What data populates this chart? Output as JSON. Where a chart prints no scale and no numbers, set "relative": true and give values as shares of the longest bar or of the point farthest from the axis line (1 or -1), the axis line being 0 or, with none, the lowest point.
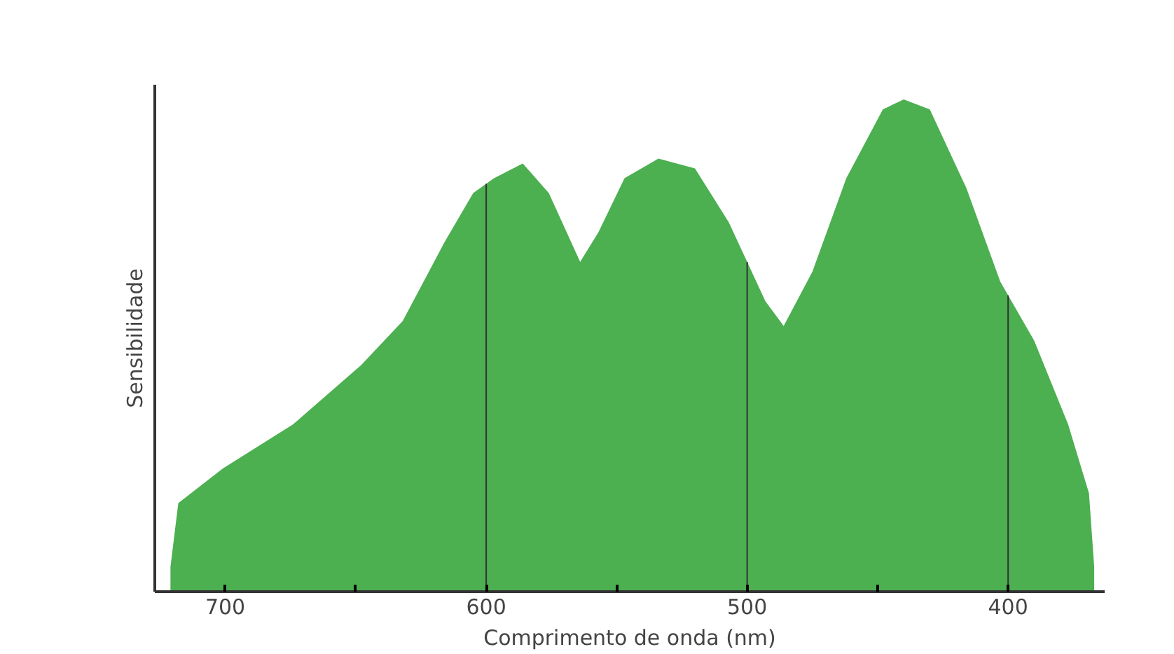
{
  "chart_data": {
    "type": "area",
    "relative": true,
    "xlabel": "Comprimento de onda (nm)",
    "ylabel": "Sensibilidade",
    "xlim": [
      727,
      363
    ],
    "xticks": [
      700,
      {
        "value": 650,
        "label": null
      },
      600,
      {
        "value": 550,
        "label": null
      },
      500,
      {
        "value": 450,
        "label": null
      },
      400
    ],
    "x": [
      721,
      718,
      701,
      674,
      648,
      632,
      616,
      605,
      597,
      586,
      576,
      564,
      557,
      547,
      534,
      520,
      507,
      493,
      486,
      475,
      462,
      448,
      440,
      430,
      416,
      403,
      390,
      377,
      369,
      367
    ],
    "series": [
      {
        "color": "#4caf50",
        "values": [
          0.05,
          0.18,
          0.25,
          0.34,
          0.46,
          0.55,
          0.71,
          0.81,
          0.84,
          0.87,
          0.81,
          0.67,
          0.73,
          0.84,
          0.88,
          0.86,
          0.75,
          0.59,
          0.54,
          0.65,
          0.84,
          0.98,
          1.0,
          0.98,
          0.82,
          0.63,
          0.51,
          0.34,
          0.2,
          0.05
        ]
      }
    ],
    "ref_lines": [
      {
        "axis": "x",
        "value": 600,
        "color": "#333333"
      },
      {
        "axis": "x",
        "value": 500,
        "color": "#333333"
      },
      {
        "axis": "x",
        "value": 400,
        "color": "#333333"
      }
    ],
    "grid": false
  }
}
